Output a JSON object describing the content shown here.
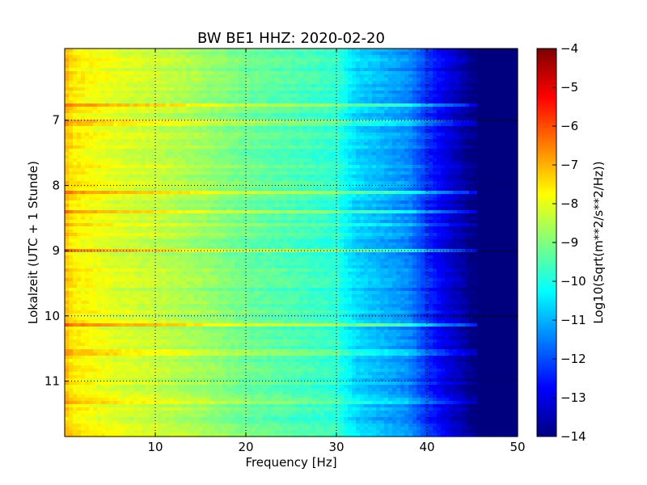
{
  "chart_data": {
    "type": "heatmap",
    "title": "BW BE1 HHZ: 2020-02-20",
    "xlabel": "Frequency [Hz]",
    "ylabel": "Lokalzeit (UTC + 1 Stunde)",
    "xlim": [
      0,
      50
    ],
    "ylim": [
      5.9,
      11.85
    ],
    "y_inverted": true,
    "x_ticks": [
      10,
      20,
      30,
      40,
      50
    ],
    "y_ticks": [
      7,
      8,
      9,
      10,
      11
    ],
    "grid": "dotted",
    "colorbar": {
      "label": "Log10(Sqrt(m**2/s**2/Hz))",
      "colormap": "jet",
      "range": [
        -14,
        -4
      ],
      "ticks": [
        -4,
        -5,
        -6,
        -7,
        -8,
        -9,
        -10,
        -11,
        -12,
        -13,
        -14
      ]
    },
    "spectrum_profile": [
      {
        "frequency": 0.2,
        "value": -7.2
      },
      {
        "frequency": 1,
        "value": -7.6
      },
      {
        "frequency": 3,
        "value": -7.8
      },
      {
        "frequency": 6,
        "value": -8.1
      },
      {
        "frequency": 10,
        "value": -8.3
      },
      {
        "frequency": 15,
        "value": -8.7
      },
      {
        "frequency": 20,
        "value": -9.2
      },
      {
        "frequency": 25,
        "value": -9.5
      },
      {
        "frequency": 30,
        "value": -9.8
      },
      {
        "frequency": 32,
        "value": -10.6
      },
      {
        "frequency": 35,
        "value": -11.0
      },
      {
        "frequency": 38,
        "value": -11.4
      },
      {
        "frequency": 40,
        "value": -12.3
      },
      {
        "frequency": 42,
        "value": -13.0
      },
      {
        "frequency": 44,
        "value": -13.6
      },
      {
        "frequency": 45,
        "value": -14.0
      },
      {
        "frequency": 50,
        "value": -14.0
      }
    ],
    "bands": [
      {
        "time": 6.78,
        "boost": 0.9
      },
      {
        "time": 7.05,
        "boost": 0.6
      },
      {
        "time": 8.1,
        "boost": 1.1
      },
      {
        "time": 8.4,
        "boost": 0.8
      },
      {
        "time": 8.6,
        "boost": 0.5
      },
      {
        "time": 9.0,
        "boost": 1.0
      },
      {
        "time": 10.15,
        "boost": 1.2
      },
      {
        "time": 10.55,
        "boost": 0.4
      },
      {
        "time": 11.3,
        "boost": 0.4
      }
    ],
    "colors": {
      "jet": [
        "#00007f",
        "#0000ff",
        "#007fff",
        "#00ffff",
        "#7fff7f",
        "#ffff00",
        "#ff7f00",
        "#ff0000",
        "#7f0000"
      ]
    }
  }
}
